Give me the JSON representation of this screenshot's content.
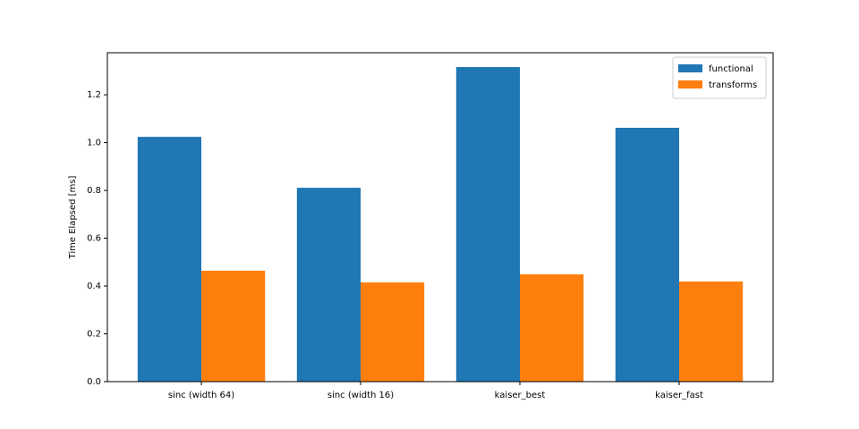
{
  "chart_data": {
    "type": "bar",
    "ylabel": "Time Elapsed [ms]",
    "categories": [
      "sinc (width 64)",
      "sinc (width 16)",
      "kaiser_best",
      "kaiser_fast"
    ],
    "series": [
      {
        "name": "functional",
        "color": "#1f77b4",
        "values": [
          1.024,
          0.811,
          1.316,
          1.062
        ]
      },
      {
        "name": "transforms",
        "color": "#ff7f0e",
        "values": [
          0.464,
          0.415,
          0.449,
          0.419
        ]
      }
    ],
    "ylim": [
      0,
      1.376
    ],
    "yticks": [
      {
        "value": 0,
        "label": "0.0"
      },
      0.2,
      0.4,
      0.6,
      0.8,
      {
        "value": 1,
        "label": "1.0"
      },
      1.2
    ],
    "legend": "upper right"
  }
}
